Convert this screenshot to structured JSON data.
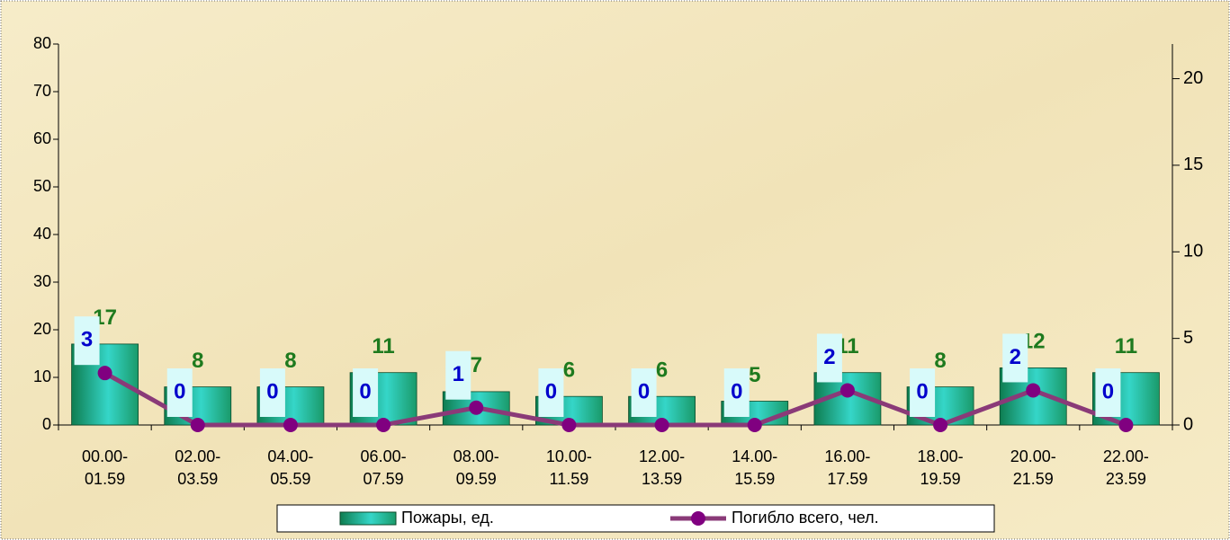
{
  "chart_data": {
    "type": "bar_line",
    "categories": [
      "00.00-\n01.59",
      "02.00-\n03.59",
      "04.00-\n05.59",
      "06.00-\n07.59",
      "08.00-\n09.59",
      "10.00-\n11.59",
      "12.00-\n13.59",
      "14.00-\n15.59",
      "16.00-\n17.59",
      "18.00-\n19.59",
      "20.00-\n21.59",
      "22.00-\n23.59"
    ],
    "series": [
      {
        "name": "Пожары, ед.",
        "type": "bar",
        "color": "#1a9a6a",
        "label_color": "#1e7a1e",
        "values": [
          17,
          8,
          8,
          11,
          7,
          6,
          6,
          5,
          11,
          8,
          12,
          11
        ]
      },
      {
        "name": "Погибло всего, чел.",
        "type": "line",
        "axis": "y2",
        "color": "#8a3a78",
        "marker_color": "#800080",
        "label_color": "#0000cc",
        "values": [
          3,
          0,
          0,
          0,
          1,
          0,
          0,
          0,
          2,
          0,
          2,
          0
        ]
      }
    ],
    "ylim": [
      0,
      80
    ],
    "yticks": [
      0,
      10,
      20,
      30,
      40,
      50,
      60,
      70,
      80
    ],
    "y2lim": [
      0,
      22
    ],
    "y2ticks": [
      0,
      5,
      10,
      15,
      20
    ],
    "legend": "bottom"
  }
}
